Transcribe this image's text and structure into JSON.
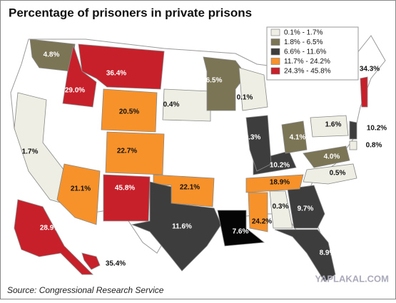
{
  "title": "Percentage of prisoners in private prisons",
  "legend": [
    {
      "label": "0.1% - 1.7%",
      "color": "#eeeee4"
    },
    {
      "label": "1.8% - 6.5%",
      "color": "#7b7455"
    },
    {
      "label": "6.6% - 11.6%",
      "color": "#3d3d3d"
    },
    {
      "label": "11.7% - 24.2%",
      "color": "#f7922b"
    },
    {
      "label": "24.3% - 45.8%",
      "color": "#c8202a"
    }
  ],
  "states": [
    {
      "label": "4.8%",
      "color": "#7b7455"
    },
    {
      "label": "36.4%",
      "color": "#c8202a"
    },
    {
      "label": "29.0%",
      "color": "#c8202a"
    },
    {
      "label": "20.5%",
      "color": "#f7922b"
    },
    {
      "label": "0.4%",
      "color": "#eeeee4"
    },
    {
      "label": "6.5%",
      "color": "#7b7455"
    },
    {
      "label": "0.1%",
      "color": "#eeeee4"
    },
    {
      "label": "1.7%",
      "color": "#eeeee4"
    },
    {
      "label": "22.7%",
      "color": "#f7922b"
    },
    {
      "label": "21.1%",
      "color": "#f7922b"
    },
    {
      "label": "45.8%",
      "color": "#c8202a"
    },
    {
      "label": "22.1%",
      "color": "#f7922b"
    },
    {
      "label": "11.6%",
      "color": "#3d3d3d"
    },
    {
      "label": "7.6%",
      "color": "#050505"
    },
    {
      "label": "24.2%",
      "color": "#f7922b"
    },
    {
      "label": "0.3%",
      "color": "#eeeee4"
    },
    {
      "label": "9.7%",
      "color": "#3d3d3d"
    },
    {
      "label": "8.9%",
      "color": "#3d3d3d"
    },
    {
      "label": "18.9%",
      "color": "#f7922b"
    },
    {
      "label": "10.2%",
      "color": "#3d3d3d"
    },
    {
      "label": "9.3%",
      "color": "#3d3d3d"
    },
    {
      "label": "4.1%",
      "color": "#7b7455"
    },
    {
      "label": "1.6%",
      "color": "#eeeee4"
    },
    {
      "label": "10.2%",
      "color": "#3d3d3d"
    },
    {
      "label": "0.8%",
      "color": "#eeeee4"
    },
    {
      "label": "4.0%",
      "color": "#7b7455"
    },
    {
      "label": "0.5%",
      "color": "#eeeee4"
    },
    {
      "label": "34.3%",
      "color": "#c8202a"
    },
    {
      "label": "28.9%",
      "color": "#c8202a"
    },
    {
      "label": "35.4%",
      "color": "#c8202a"
    }
  ],
  "source": "Source: Congressional Research Service",
  "watermark": "YAPLAKAL.COM"
}
